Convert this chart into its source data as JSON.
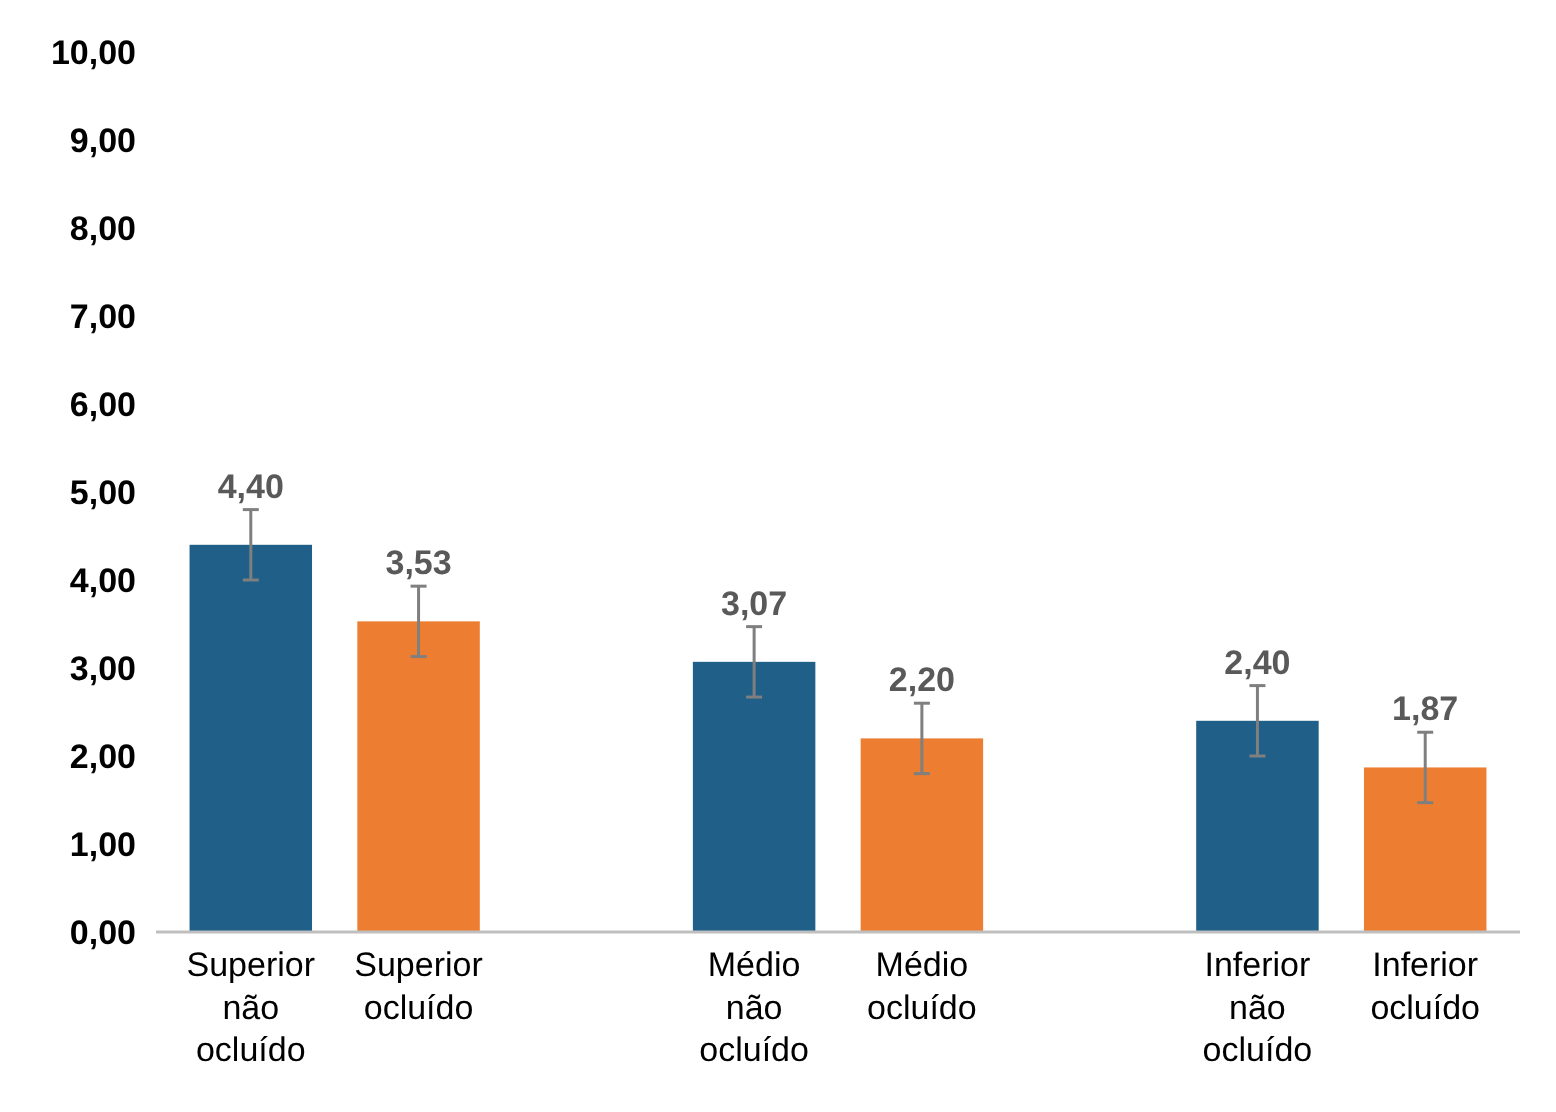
{
  "chart_data": {
    "type": "bar",
    "categories": [
      "Superior não ocluído",
      "Superior ocluído",
      null,
      "Médio não ocluído",
      "Médio ocluído",
      null,
      "Inferior não ocluído",
      "Inferior ocluído"
    ],
    "values": [
      4.4,
      3.53,
      null,
      3.07,
      2.2,
      null,
      2.4,
      1.87
    ],
    "colors": [
      "#1f5f88",
      "#ed7d31",
      null,
      "#1f5f88",
      "#ed7d31",
      null,
      "#1f5f88",
      "#ed7d31"
    ],
    "errors": [
      0.4,
      0.4,
      null,
      0.4,
      0.4,
      null,
      0.4,
      0.4
    ],
    "value_labels": [
      "4,40",
      "3,53",
      null,
      "3,07",
      "2,20",
      null,
      "2,40",
      "1,87"
    ],
    "ylim": [
      0,
      10
    ],
    "yticks": [
      {
        "value": 0,
        "label": "0,00"
      },
      {
        "value": 1,
        "label": "1,00"
      },
      {
        "value": 2,
        "label": "2,00"
      },
      {
        "value": 3,
        "label": "3,00"
      },
      {
        "value": 4,
        "label": "4,00"
      },
      {
        "value": 5,
        "label": "5,00"
      },
      {
        "value": 6,
        "label": "6,00"
      },
      {
        "value": 7,
        "label": "7,00"
      },
      {
        "value": 8,
        "label": "8,00"
      },
      {
        "value": 9,
        "label": "9,00"
      },
      {
        "value": 10,
        "label": "10,00"
      }
    ],
    "grid": false
  }
}
